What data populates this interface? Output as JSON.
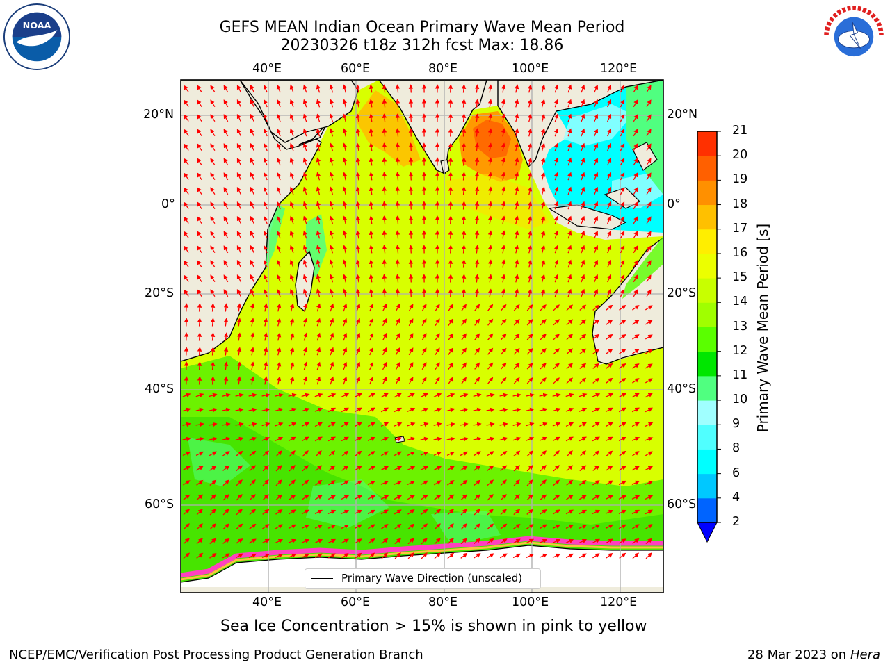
{
  "title": {
    "line1": "GEFS MEAN Indian Ocean Primary Wave Mean Period",
    "line2": "20230326 t18z 312h fcst   Max: 18.86"
  },
  "map": {
    "lon_labels": [
      "40°E",
      "60°E",
      "80°E",
      "100°E",
      "120°E"
    ],
    "lat_labels": [
      "20°N",
      "0°",
      "20°S",
      "40°S",
      "60°S"
    ],
    "extent": {
      "lon": [
        20,
        130
      ],
      "lat": [
        -70,
        28
      ]
    },
    "land_color": "#efecdc",
    "arrow_color": "#ff0000"
  },
  "legend": {
    "label": "Primary Wave Direction (unscaled)"
  },
  "colorbar": {
    "label": "Primary Wave Mean Period [s]",
    "ticks": [
      "2",
      "4",
      "6",
      "8",
      "9",
      "10",
      "11",
      "12",
      "13",
      "14",
      "15",
      "16",
      "17",
      "18",
      "19",
      "20",
      "21"
    ],
    "colors": [
      "#0064ff",
      "#00c8ff",
      "#00ffff",
      "#50ffff",
      "#a0ffff",
      "#50ff80",
      "#00e600",
      "#5aff00",
      "#a0ff00",
      "#c8ff00",
      "#ecff00",
      "#ffee00",
      "#ffc000",
      "#ff9000",
      "#ff6000",
      "#ff3000"
    ],
    "under_color": "#0000ff"
  },
  "footer": {
    "note": "Sea Ice Concentration > 15% is shown in pink to yellow",
    "credit": "NCEP/EMC/Verification Post Processing Product Generation Branch",
    "date": "28 Mar 2023 on",
    "machine": "Hera"
  },
  "logos": {
    "left": "noaa-logo",
    "right": "nws-logo"
  }
}
